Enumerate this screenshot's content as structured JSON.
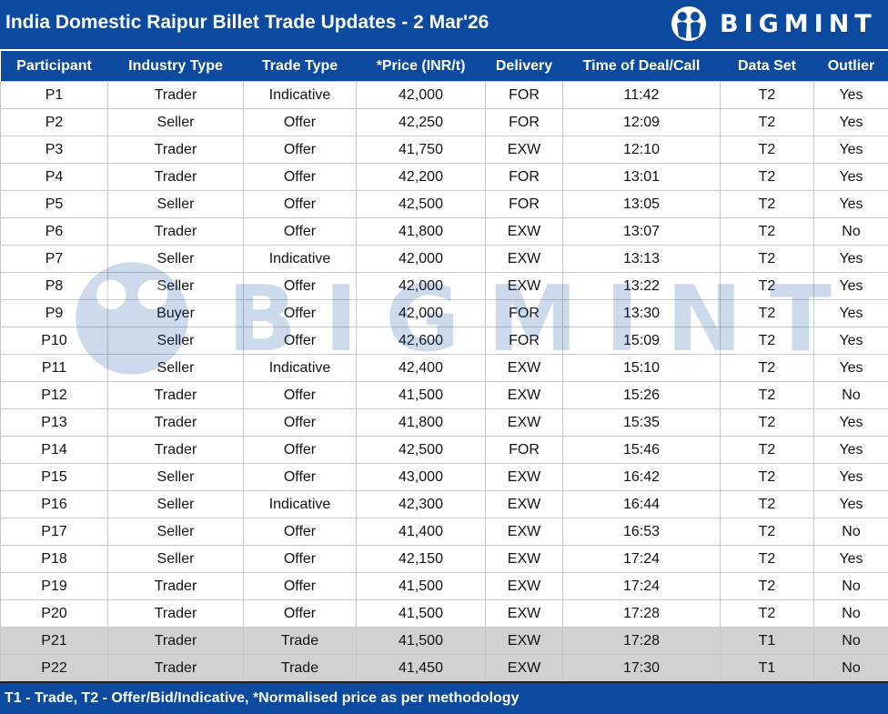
{
  "header": {
    "title": "India Domestic Raipur Billet Trade Updates - 2 Mar'26",
    "logo_text": "BIGMINT"
  },
  "colors": {
    "brand_blue": "#0b4a9e",
    "trade_row_bg": "#d2d0d2"
  },
  "table": {
    "columns": [
      "Participant",
      "Industry Type",
      "Trade Type",
      "*Price (INR/t)",
      "Delivery",
      "Time of Deal/Call",
      "Data Set",
      "Outlier"
    ],
    "rows": [
      [
        "P1",
        "Trader",
        "Indicative",
        "42,000",
        "FOR",
        "11:42",
        "T2",
        "Yes"
      ],
      [
        "P2",
        "Seller",
        "Offer",
        "42,250",
        "FOR",
        "12:09",
        "T2",
        "Yes"
      ],
      [
        "P3",
        "Trader",
        "Offer",
        "41,750",
        "EXW",
        "12:10",
        "T2",
        "Yes"
      ],
      [
        "P4",
        "Trader",
        "Offer",
        "42,200",
        "FOR",
        "13:01",
        "T2",
        "Yes"
      ],
      [
        "P5",
        "Seller",
        "Offer",
        "42,500",
        "FOR",
        "13:05",
        "T2",
        "Yes"
      ],
      [
        "P6",
        "Trader",
        "Offer",
        "41,800",
        "EXW",
        "13:07",
        "T2",
        "No"
      ],
      [
        "P7",
        "Seller",
        "Indicative",
        "42,000",
        "EXW",
        "13:13",
        "T2",
        "Yes"
      ],
      [
        "P8",
        "Seller",
        "Offer",
        "42,000",
        "EXW",
        "13:22",
        "T2",
        "Yes"
      ],
      [
        "P9",
        "Buyer",
        "Offer",
        "42,000",
        "FOR",
        "13:30",
        "T2",
        "Yes"
      ],
      [
        "P10",
        "Seller",
        "Offer",
        "42,600",
        "FOR",
        "15:09",
        "T2",
        "Yes"
      ],
      [
        "P11",
        "Seller",
        "Indicative",
        "42,400",
        "EXW",
        "15:10",
        "T2",
        "Yes"
      ],
      [
        "P12",
        "Trader",
        "Offer",
        "41,500",
        "EXW",
        "15:26",
        "T2",
        "No"
      ],
      [
        "P13",
        "Trader",
        "Offer",
        "41,800",
        "EXW",
        "15:35",
        "T2",
        "Yes"
      ],
      [
        "P14",
        "Trader",
        "Offer",
        "42,500",
        "FOR",
        "15:46",
        "T2",
        "Yes"
      ],
      [
        "P15",
        "Seller",
        "Offer",
        "43,000",
        "EXW",
        "16:42",
        "T2",
        "Yes"
      ],
      [
        "P16",
        "Seller",
        "Indicative",
        "42,300",
        "EXW",
        "16:44",
        "T2",
        "Yes"
      ],
      [
        "P17",
        "Seller",
        "Offer",
        "41,400",
        "EXW",
        "16:53",
        "T2",
        "No"
      ],
      [
        "P18",
        "Seller",
        "Offer",
        "42,150",
        "EXW",
        "17:24",
        "T2",
        "Yes"
      ],
      [
        "P19",
        "Trader",
        "Offer",
        "41,500",
        "EXW",
        "17:24",
        "T2",
        "No"
      ],
      [
        "P20",
        "Trader",
        "Offer",
        "41,500",
        "EXW",
        "17:28",
        "T2",
        "No"
      ],
      [
        "P21",
        "Trader",
        "Trade",
        "41,500",
        "EXW",
        "17:28",
        "T1",
        "No"
      ],
      [
        "P22",
        "Trader",
        "Trade",
        "41,450",
        "EXW",
        "17:30",
        "T1",
        "No"
      ]
    ]
  },
  "footer": {
    "note": "T1 - Trade, T2 - Offer/Bid/Indicative, *Normalised price as per methodology"
  }
}
